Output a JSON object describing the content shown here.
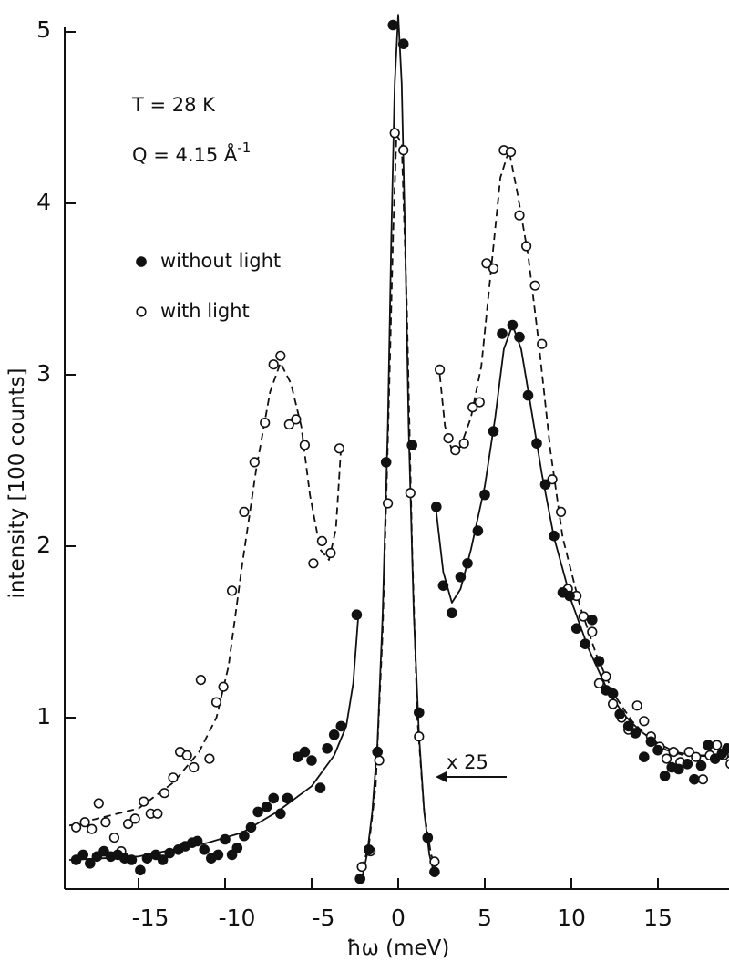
{
  "chart_data": {
    "type": "scatter",
    "xlabel": "ħω  (meV)",
    "ylabel": "intensity [100 counts]",
    "xlim": [
      -19,
      19.5
    ],
    "ylim": [
      0,
      5.05
    ],
    "x_ticks": [
      -15,
      -10,
      -5,
      0,
      5,
      10,
      15
    ],
    "x_tick_labels": [
      "-15",
      "-10",
      "-5",
      "0",
      "5",
      "10",
      "15"
    ],
    "y_ticks": [
      1,
      2,
      3,
      4,
      5
    ],
    "y_tick_labels": [
      "1",
      "2",
      "3",
      "4",
      "5"
    ],
    "annotations": {
      "temperature": "T = 28 K",
      "q_value": "Q = 4.15 Å",
      "q_exponent": "-1",
      "scale_note": "x 25"
    },
    "legend": {
      "placement": "top-left",
      "entries": [
        {
          "label": "without light",
          "marker": "filled-circle"
        },
        {
          "label": "with light",
          "marker": "open-circle"
        }
      ]
    },
    "series": [
      {
        "name": "without light",
        "marker": "filled-circle",
        "fit_line": "solid",
        "points": [
          [
            -18.6,
            0.17
          ],
          [
            -18.2,
            0.2
          ],
          [
            -17.8,
            0.15
          ],
          [
            -17.4,
            0.19
          ],
          [
            -17.0,
            0.22
          ],
          [
            -16.6,
            0.19
          ],
          [
            -16.2,
            0.2
          ],
          [
            -15.8,
            0.18
          ],
          [
            -15.4,
            0.17
          ],
          [
            -14.9,
            0.11
          ],
          [
            -14.5,
            0.18
          ],
          [
            -14.0,
            0.2
          ],
          [
            -13.6,
            0.17
          ],
          [
            -13.2,
            0.21
          ],
          [
            -12.7,
            0.23
          ],
          [
            -12.3,
            0.25
          ],
          [
            -11.9,
            0.27
          ],
          [
            -11.6,
            0.28
          ],
          [
            -11.2,
            0.23
          ],
          [
            -10.8,
            0.18
          ],
          [
            -10.4,
            0.2
          ],
          [
            -10.0,
            0.29
          ],
          [
            -9.6,
            0.2
          ],
          [
            -9.3,
            0.24
          ],
          [
            -8.9,
            0.31
          ],
          [
            -8.5,
            0.36
          ],
          [
            -8.1,
            0.45
          ],
          [
            -7.6,
            0.48
          ],
          [
            -7.2,
            0.53
          ],
          [
            -6.8,
            0.44
          ],
          [
            -6.4,
            0.53
          ],
          [
            -5.8,
            0.77
          ],
          [
            -5.4,
            0.8
          ],
          [
            -5.0,
            0.75
          ],
          [
            -4.5,
            0.59
          ],
          [
            -4.1,
            0.82
          ],
          [
            -3.7,
            0.9
          ],
          [
            -3.3,
            0.95
          ],
          [
            -2.4,
            1.6
          ],
          [
            2.2,
            2.23
          ],
          [
            2.6,
            1.77
          ],
          [
            3.1,
            1.61
          ],
          [
            3.6,
            1.82
          ],
          [
            4.0,
            1.9
          ],
          [
            4.6,
            2.09
          ],
          [
            5.0,
            2.3
          ],
          [
            5.5,
            2.67
          ],
          [
            6.0,
            3.24
          ],
          [
            6.6,
            3.29
          ],
          [
            7.0,
            3.22
          ],
          [
            7.5,
            2.88
          ],
          [
            8.0,
            2.6
          ],
          [
            8.5,
            2.36
          ],
          [
            9.0,
            2.06
          ],
          [
            9.5,
            1.73
          ],
          [
            9.9,
            1.71
          ],
          [
            10.3,
            1.52
          ],
          [
            10.8,
            1.43
          ],
          [
            11.2,
            1.57
          ],
          [
            11.6,
            1.33
          ],
          [
            12.0,
            1.16
          ],
          [
            12.4,
            1.14
          ],
          [
            12.8,
            1.02
          ],
          [
            13.3,
            0.95
          ],
          [
            13.7,
            0.91
          ],
          [
            14.2,
            0.77
          ],
          [
            14.6,
            0.86
          ],
          [
            15.0,
            0.81
          ],
          [
            15.4,
            0.66
          ],
          [
            15.8,
            0.71
          ],
          [
            16.2,
            0.7
          ],
          [
            16.7,
            0.73
          ],
          [
            17.1,
            0.64
          ],
          [
            17.5,
            0.72
          ],
          [
            17.9,
            0.84
          ],
          [
            18.3,
            0.76
          ],
          [
            18.7,
            0.79
          ],
          [
            19.0,
            0.82
          ]
        ],
        "central_peak_points": [
          [
            -2.2,
            0.06
          ],
          [
            -1.7,
            0.23
          ],
          [
            -1.2,
            0.8
          ],
          [
            -0.7,
            2.49
          ],
          [
            -0.3,
            5.04
          ],
          [
            0.3,
            4.93
          ],
          [
            0.8,
            2.59
          ],
          [
            1.2,
            1.03
          ],
          [
            1.7,
            0.3
          ],
          [
            2.1,
            0.1
          ]
        ],
        "central_peak_scale": "x 25"
      },
      {
        "name": "with light",
        "marker": "open-circle",
        "fit_line": "dashed",
        "points": [
          [
            -18.6,
            0.36
          ],
          [
            -18.1,
            0.39
          ],
          [
            -17.7,
            0.35
          ],
          [
            -17.3,
            0.5
          ],
          [
            -16.9,
            0.39
          ],
          [
            -16.4,
            0.3
          ],
          [
            -16.0,
            0.22
          ],
          [
            -15.6,
            0.38
          ],
          [
            -15.2,
            0.41
          ],
          [
            -14.7,
            0.51
          ],
          [
            -14.3,
            0.44
          ],
          [
            -13.9,
            0.44
          ],
          [
            -13.5,
            0.56
          ],
          [
            -13.0,
            0.65
          ],
          [
            -12.6,
            0.8
          ],
          [
            -12.2,
            0.78
          ],
          [
            -11.8,
            0.71
          ],
          [
            -11.4,
            1.22
          ],
          [
            -10.9,
            0.76
          ],
          [
            -10.5,
            1.09
          ],
          [
            -10.1,
            1.18
          ],
          [
            -9.6,
            1.74
          ],
          [
            -8.9,
            2.2
          ],
          [
            -8.3,
            2.49
          ],
          [
            -7.7,
            2.72
          ],
          [
            -7.2,
            3.06
          ],
          [
            -6.8,
            3.11
          ],
          [
            -6.3,
            2.71
          ],
          [
            -5.9,
            2.74
          ],
          [
            -5.4,
            2.59
          ],
          [
            -4.9,
            1.9
          ],
          [
            -4.4,
            2.03
          ],
          [
            -3.9,
            1.96
          ],
          [
            -3.4,
            2.57
          ],
          [
            2.4,
            3.03
          ],
          [
            2.9,
            2.63
          ],
          [
            3.3,
            2.56
          ],
          [
            3.8,
            2.6
          ],
          [
            4.3,
            2.81
          ],
          [
            4.7,
            2.84
          ],
          [
            5.1,
            3.65
          ],
          [
            5.5,
            3.62
          ],
          [
            6.1,
            4.31
          ],
          [
            6.5,
            4.3
          ],
          [
            7.0,
            3.93
          ],
          [
            7.4,
            3.75
          ],
          [
            7.9,
            3.52
          ],
          [
            8.3,
            3.18
          ],
          [
            8.9,
            2.39
          ],
          [
            9.4,
            2.2
          ],
          [
            9.8,
            1.75
          ],
          [
            10.3,
            1.71
          ],
          [
            10.7,
            1.59
          ],
          [
            11.2,
            1.5
          ],
          [
            11.6,
            1.2
          ],
          [
            12.0,
            1.24
          ],
          [
            12.4,
            1.08
          ],
          [
            12.9,
            1.0
          ],
          [
            13.3,
            0.93
          ],
          [
            13.8,
            1.07
          ],
          [
            14.2,
            0.98
          ],
          [
            14.6,
            0.89
          ],
          [
            15.1,
            0.83
          ],
          [
            15.5,
            0.76
          ],
          [
            15.9,
            0.8
          ],
          [
            16.3,
            0.74
          ],
          [
            16.8,
            0.8
          ],
          [
            17.2,
            0.77
          ],
          [
            17.6,
            0.64
          ],
          [
            18.0,
            0.78
          ],
          [
            18.4,
            0.84
          ],
          [
            18.8,
            0.78
          ],
          [
            19.2,
            0.73
          ]
        ],
        "central_peak_points": [
          [
            -2.1,
            0.13
          ],
          [
            -1.6,
            0.22
          ],
          [
            -1.1,
            0.75
          ],
          [
            -0.6,
            2.25
          ],
          [
            -0.2,
            4.41
          ],
          [
            0.3,
            4.31
          ],
          [
            0.7,
            2.31
          ],
          [
            1.2,
            0.89
          ],
          [
            1.7,
            0.3
          ],
          [
            2.1,
            0.16
          ]
        ],
        "central_peak_scale": "x 25"
      }
    ],
    "fit_curves": {
      "without_light_left": [
        [
          -19,
          0.17
        ],
        [
          -17,
          0.18
        ],
        [
          -15,
          0.19
        ],
        [
          -13,
          0.23
        ],
        [
          -11,
          0.27
        ],
        [
          -9,
          0.33
        ],
        [
          -7,
          0.45
        ],
        [
          -5,
          0.6
        ],
        [
          -3.7,
          0.78
        ],
        [
          -3.0,
          0.95
        ],
        [
          -2.6,
          1.2
        ],
        [
          -2.3,
          1.6
        ]
      ],
      "without_light_right": [
        [
          2.2,
          2.2
        ],
        [
          2.6,
          1.85
        ],
        [
          3.1,
          1.67
        ],
        [
          3.6,
          1.75
        ],
        [
          4.2,
          1.98
        ],
        [
          5.0,
          2.35
        ],
        [
          5.6,
          2.75
        ],
        [
          6.1,
          3.15
        ],
        [
          6.6,
          3.29
        ],
        [
          7.1,
          3.15
        ],
        [
          7.6,
          2.85
        ],
        [
          8.3,
          2.42
        ],
        [
          9.0,
          2.05
        ],
        [
          10.0,
          1.68
        ],
        [
          11.0,
          1.4
        ],
        [
          12.0,
          1.18
        ],
        [
          13.0,
          1.02
        ],
        [
          14.0,
          0.92
        ],
        [
          15.0,
          0.85
        ],
        [
          16.0,
          0.8
        ],
        [
          17.0,
          0.78
        ],
        [
          19.0,
          0.78
        ]
      ],
      "central_peak": [
        [
          -2.1,
          0.06
        ],
        [
          -1.8,
          0.2
        ],
        [
          -1.5,
          0.45
        ],
        [
          -1.2,
          0.85
        ],
        [
          -0.9,
          1.6
        ],
        [
          -0.6,
          2.7
        ],
        [
          -0.4,
          3.8
        ],
        [
          -0.2,
          4.7
        ],
        [
          0.0,
          5.1
        ],
        [
          0.2,
          4.7
        ],
        [
          0.4,
          3.8
        ],
        [
          0.6,
          2.7
        ],
        [
          0.9,
          1.6
        ],
        [
          1.2,
          0.9
        ],
        [
          1.5,
          0.45
        ],
        [
          1.8,
          0.2
        ],
        [
          2.1,
          0.08
        ]
      ],
      "with_light_left": [
        [
          -19,
          0.37
        ],
        [
          -17,
          0.42
        ],
        [
          -15,
          0.47
        ],
        [
          -13,
          0.62
        ],
        [
          -11.5,
          0.8
        ],
        [
          -10.5,
          1.0
        ],
        [
          -9.8,
          1.3
        ],
        [
          -9.0,
          1.9
        ],
        [
          -8.2,
          2.45
        ],
        [
          -7.4,
          2.9
        ],
        [
          -6.8,
          3.07
        ],
        [
          -6.2,
          2.95
        ],
        [
          -5.6,
          2.7
        ],
        [
          -5.1,
          2.3
        ],
        [
          -4.5,
          1.98
        ],
        [
          -4.0,
          1.92
        ],
        [
          -3.6,
          2.1
        ],
        [
          -3.3,
          2.58
        ]
      ],
      "with_light_right": [
        [
          2.4,
          3.0
        ],
        [
          2.7,
          2.7
        ],
        [
          3.1,
          2.56
        ],
        [
          3.6,
          2.58
        ],
        [
          4.2,
          2.75
        ],
        [
          4.8,
          3.05
        ],
        [
          5.3,
          3.55
        ],
        [
          5.9,
          4.15
        ],
        [
          6.4,
          4.31
        ],
        [
          6.9,
          4.05
        ],
        [
          7.5,
          3.7
        ],
        [
          8.1,
          3.2
        ],
        [
          8.8,
          2.55
        ],
        [
          9.5,
          2.05
        ],
        [
          10.5,
          1.65
        ],
        [
          11.5,
          1.35
        ],
        [
          12.5,
          1.13
        ],
        [
          13.5,
          0.98
        ],
        [
          14.5,
          0.88
        ],
        [
          15.5,
          0.81
        ],
        [
          16.5,
          0.78
        ],
        [
          19.5,
          0.77
        ]
      ],
      "with_light_central": [
        [
          -2.1,
          0.12
        ],
        [
          -1.7,
          0.25
        ],
        [
          -1.3,
          0.6
        ],
        [
          -0.9,
          1.5
        ],
        [
          -0.6,
          2.6
        ],
        [
          -0.3,
          3.8
        ],
        [
          -0.1,
          4.4
        ],
        [
          0.2,
          4.35
        ],
        [
          0.5,
          3.4
        ],
        [
          0.8,
          2.0
        ],
        [
          1.1,
          1.0
        ],
        [
          1.5,
          0.45
        ],
        [
          1.9,
          0.2
        ],
        [
          2.1,
          0.15
        ]
      ]
    }
  }
}
